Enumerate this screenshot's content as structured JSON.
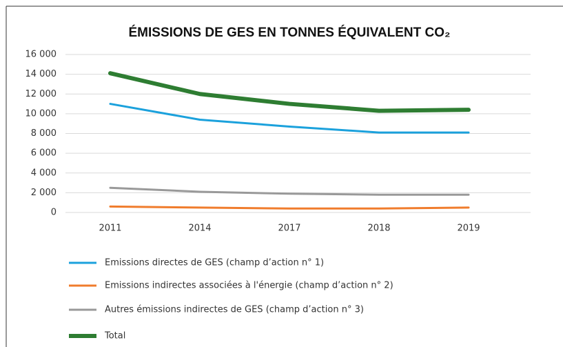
{
  "chart_data": {
    "type": "line",
    "title": "ÉMISSIONS DE GES EN TONNES ÉQUIVALENT CO₂",
    "categories": [
      "2011",
      "2014",
      "2017",
      "2018",
      "2019"
    ],
    "series": [
      {
        "name": "Emissions directes de GES (champ d’action n° 1)",
        "color": "#1ba1dc",
        "values": [
          11000,
          9400,
          8700,
          8100,
          8100
        ]
      },
      {
        "name": "Emissions indirectes associées à l'énergie (champ d’action n° 2)",
        "color": "#f07c2c",
        "values": [
          600,
          500,
          400,
          400,
          500
        ]
      },
      {
        "name": "Autres émissions indirectes de GES (champ d’action n° 3)",
        "color": "#999999",
        "values": [
          2500,
          2100,
          1900,
          1800,
          1800
        ]
      },
      {
        "name": "Total",
        "color": "#2e7d32",
        "values": [
          14100,
          12000,
          11000,
          10300,
          10400
        ]
      }
    ],
    "ylim": [
      0,
      16000
    ],
    "yticks": [
      0,
      {
        "value": 2000,
        "label": "2 000"
      },
      {
        "value": 4000,
        "label": "4 000"
      },
      {
        "value": 6000,
        "label": "6 000"
      },
      {
        "value": 8000,
        "label": "8 000"
      },
      {
        "value": 10000,
        "label": "10 000"
      },
      {
        "value": 12000,
        "label": "12 000"
      },
      {
        "value": 14000,
        "label": "14 000"
      },
      {
        "value": 16000,
        "label": "16 000"
      }
    ],
    "grid": true
  }
}
